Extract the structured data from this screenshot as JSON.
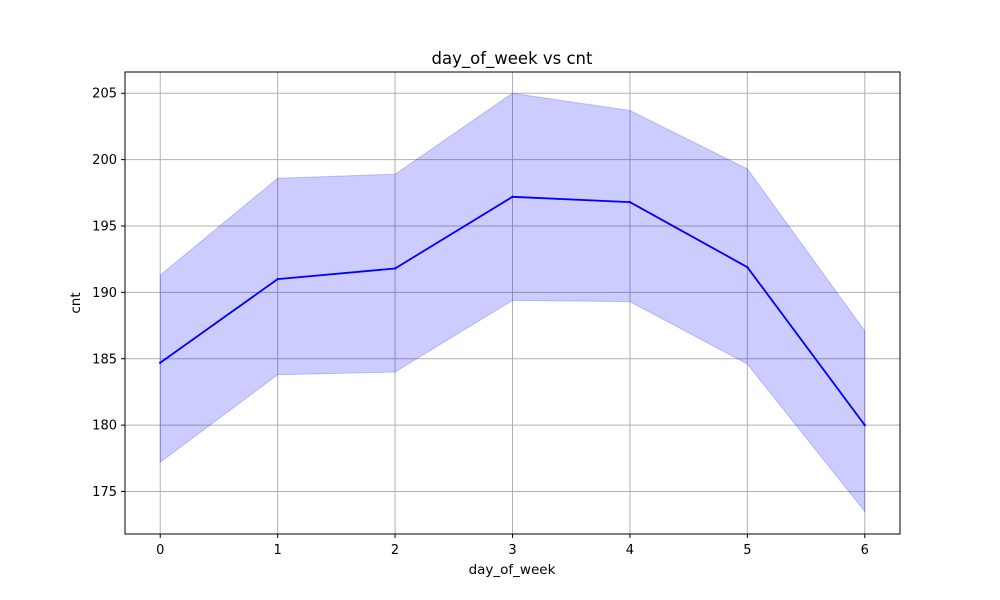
{
  "chart_data": {
    "type": "line",
    "title": "day_of_week vs cnt",
    "xlabel": "day_of_week",
    "ylabel": "cnt",
    "x": [
      0,
      1,
      2,
      3,
      4,
      5,
      6
    ],
    "xticks": [
      "0",
      "1",
      "2",
      "3",
      "4",
      "5",
      "6"
    ],
    "yticks": [
      "175",
      "180",
      "185",
      "190",
      "195",
      "200",
      "205"
    ],
    "xlim": [
      -0.3,
      6.3
    ],
    "ylim": [
      171.8,
      206.6
    ],
    "grid": true,
    "series": [
      {
        "values": [
          184.7,
          191.0,
          191.8,
          197.2,
          196.8,
          191.9,
          180.0
        ],
        "ci_lower": [
          177.2,
          183.8,
          184.0,
          189.4,
          189.3,
          184.6,
          173.5
        ],
        "ci_upper": [
          191.3,
          198.6,
          198.9,
          205.0,
          203.7,
          199.3,
          187.1
        ],
        "color": "#0000ff",
        "band_color": "#0000ff"
      }
    ]
  }
}
